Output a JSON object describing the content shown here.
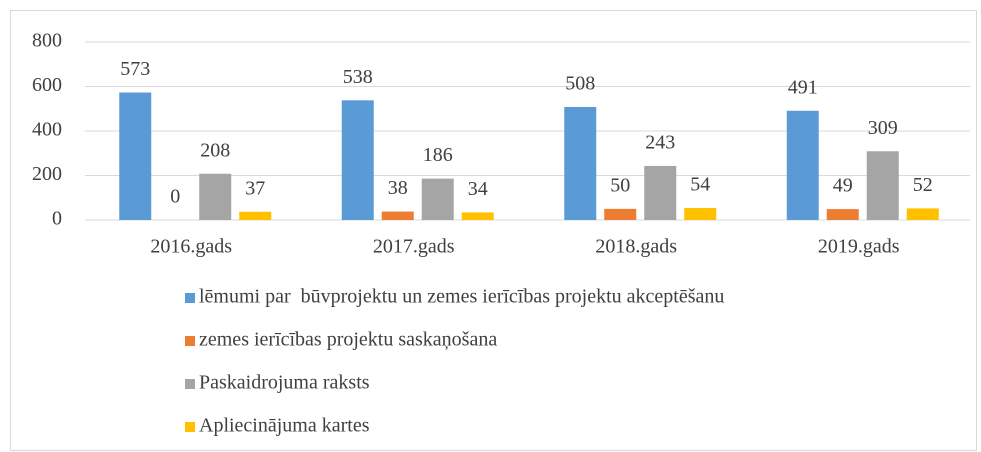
{
  "chart_data": {
    "type": "bar",
    "categories": [
      "2016.gads",
      "2017.gads",
      "2018.gads",
      "2019.gads"
    ],
    "series": [
      {
        "name": "lēmumi par  būvprojektu un zemes ierīcības projektu akceptēšanu",
        "color": "#5b9bd5",
        "values": [
          573,
          538,
          508,
          491
        ]
      },
      {
        "name": "zemes ierīcības projektu saskaņošana",
        "color": "#ed7d31",
        "values": [
          0,
          38,
          50,
          49
        ]
      },
      {
        "name": "Paskaidrojuma raksts",
        "color": "#a5a5a5",
        "values": [
          208,
          186,
          243,
          309
        ]
      },
      {
        "name": "Apliecinājuma kartes",
        "color": "#ffc000",
        "values": [
          37,
          34,
          54,
          52
        ]
      }
    ],
    "ylim": [
      0,
      800
    ],
    "yticks": [
      0,
      200,
      400,
      600,
      800
    ],
    "grid": true,
    "legend": "bottom"
  }
}
